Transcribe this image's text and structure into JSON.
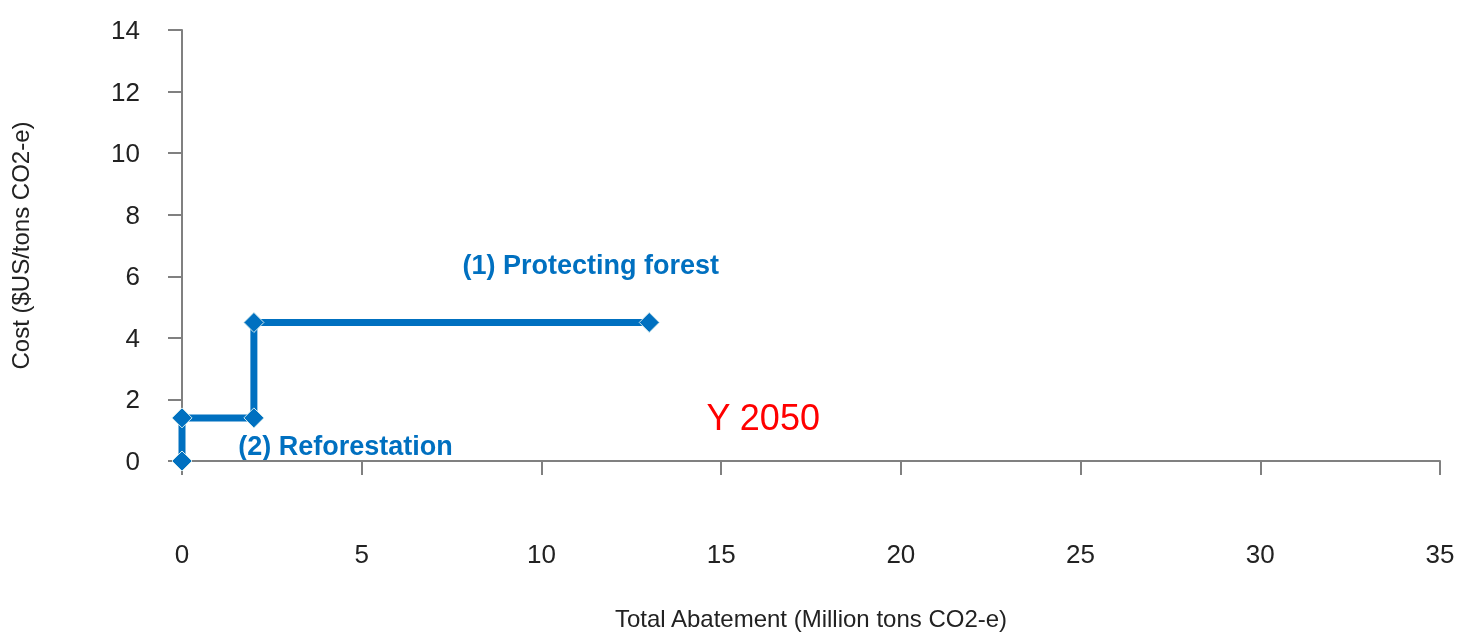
{
  "chart_data": {
    "type": "line",
    "xlabel": "Total Abatement (Million tons CO2-e)",
    "ylabel": "Cost ($US/tons CO2-e)",
    "x": [
      0,
      0,
      2,
      2,
      13
    ],
    "values": [
      0,
      1.4,
      1.4,
      4.5,
      4.5
    ],
    "color": "#0070c0",
    "marker": "diamond",
    "line_style": "solid",
    "xlim": [
      0,
      35
    ],
    "xticks": [
      0,
      5,
      10,
      15,
      20,
      25,
      30,
      35
    ],
    "ylim": [
      0,
      14
    ],
    "yticks": [
      0,
      2,
      4,
      6,
      8,
      10,
      12,
      14
    ],
    "grid": false,
    "annotations": [
      "(1) Protecting forest",
      "(2) Reforestation",
      "Y 2050"
    ]
  }
}
